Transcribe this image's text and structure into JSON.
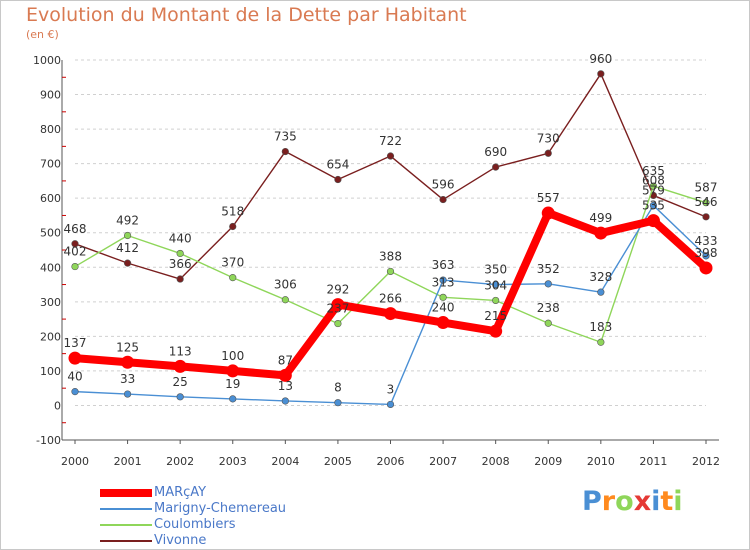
{
  "title": "Evolution du Montant de la Dette par Habitant",
  "subtitle": "(en €)",
  "logo_text": "Proxiti",
  "colors": {
    "title": "#d97a52",
    "grid": "#d0d0d0",
    "axis": "#555555",
    "legend_text": "#4a78c8"
  },
  "chart_data": {
    "type": "line",
    "title": "Evolution du Montant de la Dette par Habitant",
    "ylabel": "(en €)",
    "xlabel": "",
    "x": [
      "2000",
      "2001",
      "2002",
      "2003",
      "2004",
      "2005",
      "2006",
      "2007",
      "2008",
      "2009",
      "2010",
      "2011",
      "2012"
    ],
    "ylim": [
      -100,
      1000
    ],
    "yticks": [
      -100,
      0,
      100,
      200,
      300,
      400,
      500,
      600,
      700,
      800,
      900,
      1000
    ],
    "grid": "horizontal dashed",
    "legend_position": "bottom-left",
    "series": [
      {
        "name": "MARçAY",
        "color": "#ff0000",
        "values": [
          137,
          125,
          113,
          100,
          87,
          292,
          266,
          240,
          215,
          557,
          499,
          535,
          398
        ]
      },
      {
        "name": "Marigny-Chemereau",
        "color": "#4a8fd4",
        "values": [
          40,
          33,
          25,
          19,
          13,
          8,
          3,
          363,
          350,
          352,
          328,
          579,
          433
        ]
      },
      {
        "name": "Coulombiers",
        "color": "#8fd65a",
        "values": [
          402,
          492,
          440,
          370,
          306,
          237,
          388,
          313,
          304,
          238,
          183,
          635,
          587
        ]
      },
      {
        "name": "Vivonne",
        "color": "#7a1f1f",
        "values": [
          468,
          412,
          366,
          518,
          735,
          654,
          722,
          596,
          690,
          730,
          960,
          608,
          546
        ]
      }
    ]
  }
}
